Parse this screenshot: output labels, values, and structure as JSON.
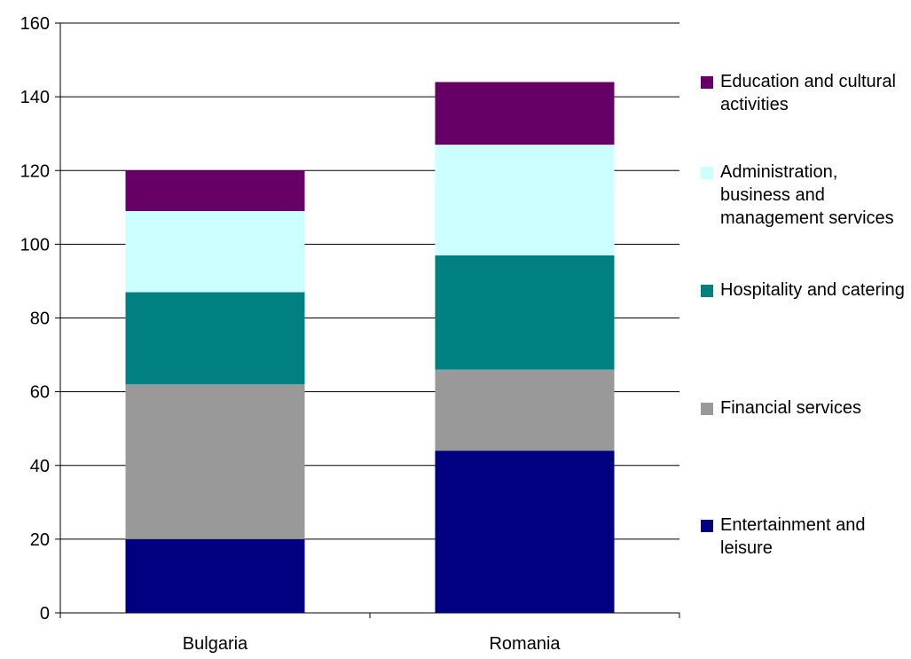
{
  "chart_data": {
    "type": "stacked_bar",
    "categories": [
      "Bulgaria",
      "Romania"
    ],
    "series": [
      {
        "name": "Entertainment and leisure",
        "color": "#000080",
        "values": [
          20,
          44
        ]
      },
      {
        "name": "Financial services",
        "color": "#999999",
        "values": [
          42,
          22
        ]
      },
      {
        "name": "Hospitality and catering",
        "color": "#008080",
        "values": [
          25,
          31
        ]
      },
      {
        "name": "Administration, business and management services",
        "color": "#ccffff",
        "values": [
          22,
          30
        ]
      },
      {
        "name": "Education and cultural activities",
        "color": "#660066",
        "values": [
          11,
          17
        ]
      }
    ],
    "ylim": [
      0,
      160
    ],
    "yticks": [
      0,
      20,
      40,
      60,
      80,
      100,
      120,
      140,
      160
    ],
    "grid": true,
    "legend": "right"
  }
}
